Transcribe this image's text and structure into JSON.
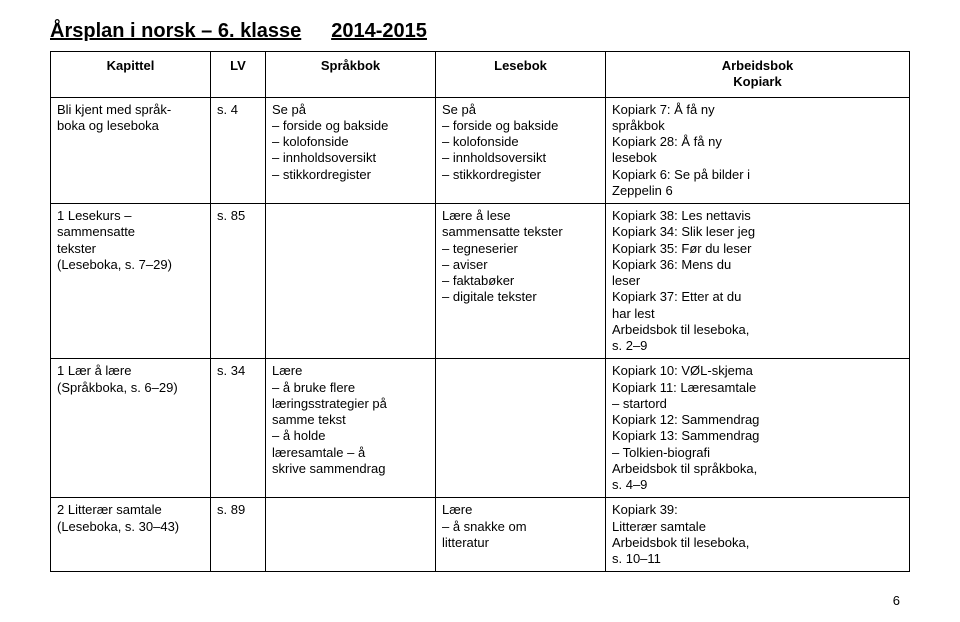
{
  "title_main": "Årsplan i norsk – 6. klasse",
  "title_year": "2014-2015",
  "headers": {
    "kapittel": "Kapittel",
    "lv": "LV",
    "sprakbok": "Språkbok",
    "lesebok": "Lesebok",
    "arbeidsbok_line1": "Arbeidsbok",
    "arbeidsbok_line2": "Kopiark"
  },
  "rows": [
    {
      "kapittel": "Bli kjent med språk-\nboka og leseboka",
      "lv": "s. 4",
      "sprakbok": "Se på\n– forside og bakside\n– kolofonside\n– innholdsoversikt\n– stikkordregister",
      "lesebok": "Se på\n– forside og bakside\n– kolofonside\n– innholdsoversikt\n– stikkordregister",
      "arbeidsbok": "Kopiark 7: Å få ny\nspråkbok\nKopiark 28: Å få ny\nlesebok\nKopiark 6: Se på bilder i\nZeppelin 6"
    },
    {
      "kapittel": "1 Lesekurs –\nsammensatte\ntekster\n(Leseboka, s. 7–29)",
      "lv": "s. 85",
      "sprakbok": "",
      "lesebok": "Lære å lese\nsammensatte tekster\n– tegneserier\n– aviser\n– faktabøker\n– digitale tekster",
      "arbeidsbok": "Kopiark 38: Les nettavis\nKopiark 34: Slik leser jeg\nKopiark 35: Før du leser\nKopiark 36: Mens du\nleser\nKopiark 37: Etter at du\nhar lest\nArbeidsbok til leseboka,\ns. 2–9"
    },
    {
      "kapittel": "1 Lær å lære\n(Språkboka, s. 6–29)",
      "lv": "s. 34",
      "sprakbok": "Lære\n– å bruke flere\nlæringsstrategier på\nsamme tekst\n– å holde\nlæresamtale – å\nskrive sammendrag",
      "lesebok": "",
      "arbeidsbok": "Kopiark 10: VØL-skjema\nKopiark 11: Læresamtale\n– startord\nKopiark 12: Sammendrag\nKopiark 13: Sammendrag\n– Tolkien-biografi\nArbeidsbok til språkboka,\ns. 4–9"
    },
    {
      "kapittel": "2 Litterær samtale\n(Leseboka, s. 30–43)",
      "lv": "s. 89",
      "sprakbok": "",
      "lesebok": "Lære\n– å snakke om\nlitteratur",
      "arbeidsbok": "Kopiark 39:\nLitterær samtale\nArbeidsbok til leseboka,\ns. 10–11"
    }
  ],
  "page_number": "6"
}
